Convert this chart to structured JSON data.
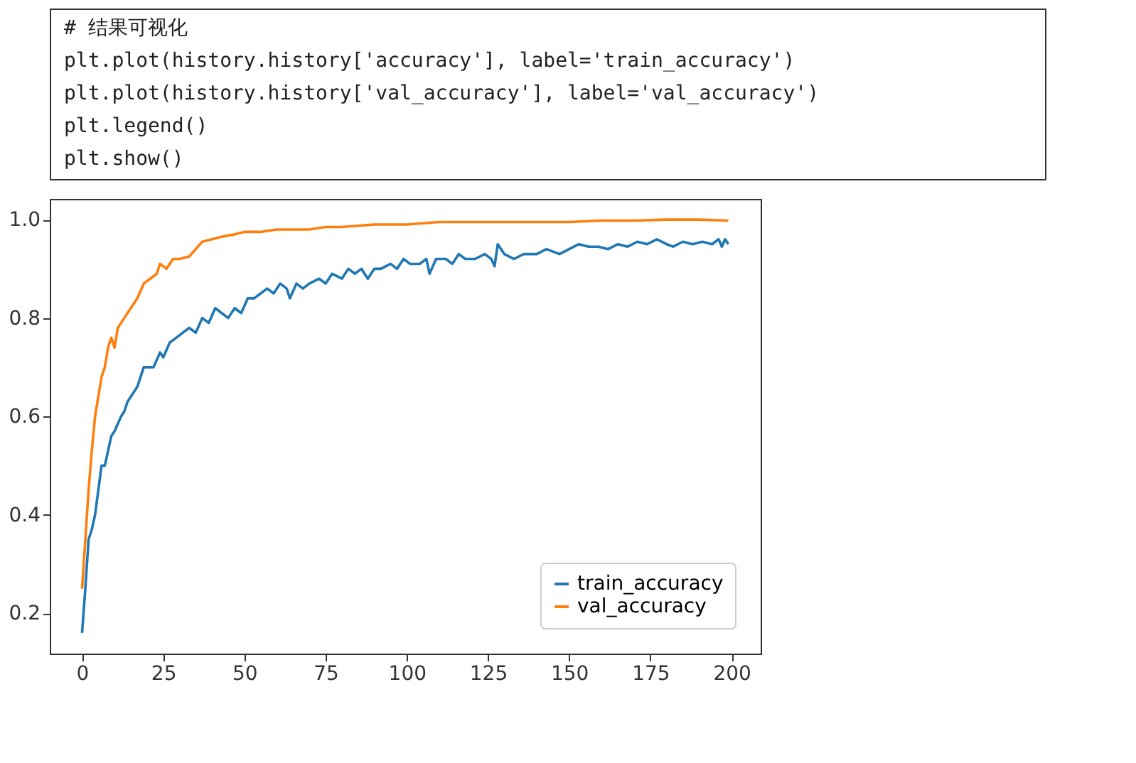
{
  "chart_data": {
    "type": "line",
    "annotations": [
      "# 结果可视化",
      "plt.plot(history.history['accuracy'], label='train_accuracy')",
      "plt.plot(history.history['val_accuracy'], label='val_accuracy')",
      "plt.legend()",
      "plt.show()"
    ],
    "series": [
      {
        "name": "train_accuracy",
        "color": "#1f77b4",
        "x": [
          0,
          1,
          2,
          3,
          4,
          5,
          6,
          7,
          8,
          9,
          10,
          12,
          13,
          14,
          16,
          17,
          19,
          20,
          22,
          24,
          25,
          27,
          29,
          31,
          33,
          35,
          37,
          39,
          41,
          43,
          45,
          47,
          49,
          51,
          53,
          55,
          57,
          59,
          61,
          63,
          64,
          66,
          68,
          70,
          73,
          75,
          77,
          80,
          82,
          84,
          86,
          88,
          90,
          92,
          95,
          97,
          99,
          101,
          104,
          106,
          107,
          109,
          112,
          114,
          116,
          118,
          121,
          124,
          126,
          127,
          128,
          130,
          133,
          136,
          140,
          143,
          147,
          150,
          153,
          156,
          159,
          162,
          165,
          168,
          171,
          174,
          177,
          180,
          182,
          185,
          188,
          191,
          194,
          196,
          197,
          198,
          199
        ],
        "values": [
          0.16,
          0.25,
          0.35,
          0.37,
          0.4,
          0.45,
          0.5,
          0.5,
          0.53,
          0.56,
          0.57,
          0.6,
          0.61,
          0.63,
          0.65,
          0.66,
          0.7,
          0.7,
          0.7,
          0.73,
          0.72,
          0.75,
          0.76,
          0.77,
          0.78,
          0.77,
          0.8,
          0.79,
          0.82,
          0.81,
          0.8,
          0.82,
          0.81,
          0.84,
          0.84,
          0.85,
          0.86,
          0.85,
          0.87,
          0.86,
          0.84,
          0.87,
          0.86,
          0.87,
          0.88,
          0.87,
          0.89,
          0.88,
          0.9,
          0.89,
          0.9,
          0.88,
          0.9,
          0.9,
          0.91,
          0.9,
          0.92,
          0.91,
          0.91,
          0.92,
          0.89,
          0.92,
          0.92,
          0.91,
          0.93,
          0.92,
          0.92,
          0.93,
          0.92,
          0.905,
          0.95,
          0.93,
          0.92,
          0.93,
          0.93,
          0.94,
          0.93,
          0.94,
          0.95,
          0.945,
          0.945,
          0.94,
          0.95,
          0.945,
          0.955,
          0.95,
          0.96,
          0.95,
          0.945,
          0.955,
          0.95,
          0.955,
          0.95,
          0.96,
          0.945,
          0.96,
          0.95
        ]
      },
      {
        "name": "val_accuracy",
        "color": "#ff7f0e",
        "x": [
          0,
          1,
          2,
          3,
          4,
          5,
          6,
          7,
          8,
          9,
          10,
          11,
          13,
          15,
          17,
          19,
          21,
          23,
          24,
          26,
          28,
          30,
          33,
          35,
          37,
          40,
          43,
          47,
          50,
          55,
          60,
          65,
          70,
          75,
          80,
          90,
          100,
          110,
          120,
          130,
          140,
          150,
          160,
          170,
          180,
          190,
          199
        ],
        "values": [
          0.25,
          0.35,
          0.45,
          0.53,
          0.6,
          0.64,
          0.68,
          0.7,
          0.74,
          0.76,
          0.74,
          0.78,
          0.8,
          0.82,
          0.84,
          0.87,
          0.88,
          0.89,
          0.91,
          0.9,
          0.92,
          0.92,
          0.925,
          0.94,
          0.955,
          0.96,
          0.965,
          0.97,
          0.975,
          0.975,
          0.98,
          0.98,
          0.98,
          0.985,
          0.985,
          0.99,
          0.99,
          0.995,
          0.995,
          0.995,
          0.995,
          0.995,
          0.998,
          0.998,
          1.0,
          1.0,
          0.998
        ]
      }
    ],
    "xlim": [
      -9.95,
      208.95
    ],
    "xticks": [
      0,
      25,
      50,
      75,
      100,
      125,
      150,
      175,
      200
    ],
    "ylim": [
      0.118,
      1.042
    ],
    "yticks": [
      0.2,
      0.4,
      0.6,
      0.8,
      {
        "value": 1.0,
        "label": "1.0"
      }
    ],
    "grid": false,
    "legend": "bottom right",
    "marker": "none",
    "line_style": "solid"
  }
}
